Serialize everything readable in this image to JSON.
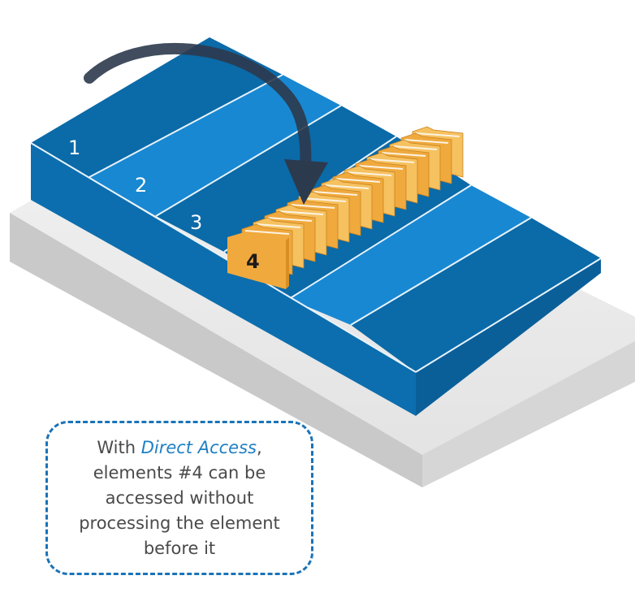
{
  "diagram": {
    "cells": [
      "1",
      "2",
      "3"
    ],
    "folder_label": "4",
    "caption": {
      "prefix": "With ",
      "highlight": "Direct Access",
      "suffix": ", elements #4 can be accessed without processing the element before it"
    },
    "colors": {
      "cell_dark": "#0b6aa8",
      "cell_light": "#1888d2",
      "tray_side": "#0a5f99",
      "tray_front": "#0c6eae",
      "base_top": "#ececec",
      "base_side": "#c8c8c8",
      "folder": "#f0a93d",
      "folder_light": "#f6c15f",
      "arrow": "#2c3a4d",
      "caption_border": "#1a73b8"
    }
  }
}
